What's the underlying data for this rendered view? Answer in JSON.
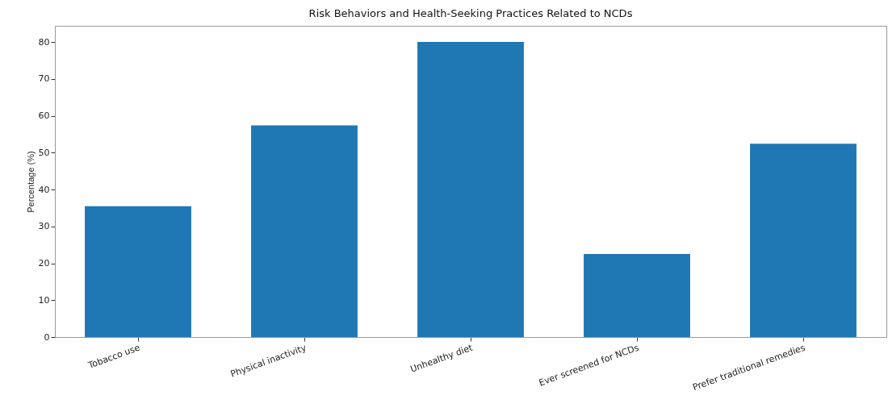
{
  "chart_data": {
    "type": "bar",
    "title": "Risk Behaviors and Health-Seeking Practices Related to NCDs",
    "ylabel": "Percentage (%)",
    "categories": [
      "Tobacco use",
      "Physical inactivity",
      "Unhealthy diet",
      "Ever screened for NCDs",
      "Prefer traditional remedies"
    ],
    "values": [
      35.5,
      57.4,
      80,
      22.5,
      52.4
    ],
    "color": "#1f77b4",
    "ylim": [
      0,
      84.4
    ],
    "yticks": [
      0,
      10,
      20,
      30,
      40,
      50,
      60,
      70,
      80
    ],
    "grid": false
  }
}
